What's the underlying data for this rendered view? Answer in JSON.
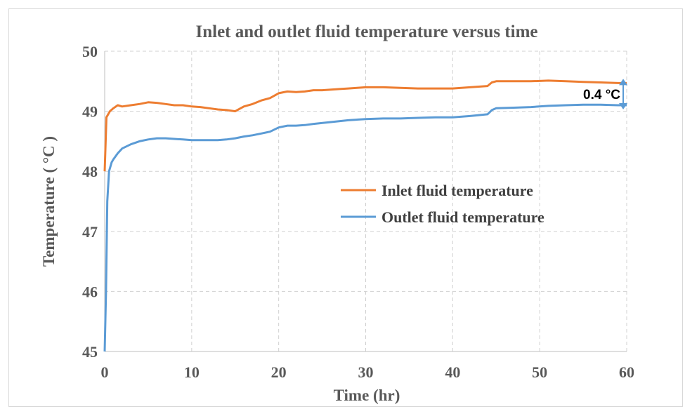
{
  "chart_data": {
    "type": "line",
    "title": "Inlet and outlet fluid temperature versus time",
    "xlabel": "Time (hr)",
    "ylabel": "Temperature ( °C )",
    "xlim": [
      0,
      60
    ],
    "ylim": [
      45,
      50
    ],
    "xticks": [
      "0",
      "10",
      "20",
      "30",
      "40",
      "50",
      "60"
    ],
    "yticks": [
      "45",
      "46",
      "47",
      "48",
      "49",
      "50"
    ],
    "grid": true,
    "legend_position": "center-right",
    "annotation": "0.4 °C",
    "series": [
      {
        "name": "Inlet fluid temperature",
        "color": "#ED7D31",
        "points": [
          [
            0,
            48.0
          ],
          [
            0.2,
            48.9
          ],
          [
            0.6,
            49.0
          ],
          [
            1,
            49.05
          ],
          [
            1.5,
            49.1
          ],
          [
            2,
            49.08
          ],
          [
            3,
            49.1
          ],
          [
            4,
            49.12
          ],
          [
            5,
            49.15
          ],
          [
            6,
            49.14
          ],
          [
            7,
            49.12
          ],
          [
            8,
            49.1
          ],
          [
            9,
            49.1
          ],
          [
            10,
            49.08
          ],
          [
            11,
            49.07
          ],
          [
            12,
            49.05
          ],
          [
            13,
            49.03
          ],
          [
            14,
            49.02
          ],
          [
            15,
            49.0
          ],
          [
            15.5,
            49.04
          ],
          [
            16,
            49.08
          ],
          [
            17,
            49.12
          ],
          [
            18,
            49.18
          ],
          [
            19,
            49.22
          ],
          [
            20,
            49.3
          ],
          [
            21,
            49.33
          ],
          [
            22,
            49.32
          ],
          [
            23,
            49.33
          ],
          [
            24,
            49.35
          ],
          [
            25,
            49.35
          ],
          [
            26,
            49.36
          ],
          [
            27,
            49.37
          ],
          [
            28,
            49.38
          ],
          [
            29,
            49.39
          ],
          [
            30,
            49.4
          ],
          [
            32,
            49.4
          ],
          [
            34,
            49.39
          ],
          [
            36,
            49.38
          ],
          [
            38,
            49.38
          ],
          [
            40,
            49.38
          ],
          [
            42,
            49.4
          ],
          [
            44,
            49.42
          ],
          [
            44.5,
            49.48
          ],
          [
            45,
            49.5
          ],
          [
            47,
            49.5
          ],
          [
            49,
            49.5
          ],
          [
            51,
            49.51
          ],
          [
            53,
            49.5
          ],
          [
            55,
            49.49
          ],
          [
            57,
            49.48
          ],
          [
            59,
            49.47
          ],
          [
            60,
            49.47
          ]
        ]
      },
      {
        "name": "Outlet fluid temperature",
        "color": "#5B9BD5",
        "points": [
          [
            0,
            45.0
          ],
          [
            0.15,
            46.0
          ],
          [
            0.3,
            47.5
          ],
          [
            0.5,
            48.0
          ],
          [
            0.8,
            48.15
          ],
          [
            1,
            48.2
          ],
          [
            1.5,
            48.3
          ],
          [
            2,
            48.38
          ],
          [
            3,
            48.45
          ],
          [
            4,
            48.5
          ],
          [
            5,
            48.53
          ],
          [
            6,
            48.55
          ],
          [
            7,
            48.55
          ],
          [
            8,
            48.54
          ],
          [
            9,
            48.53
          ],
          [
            10,
            48.52
          ],
          [
            11,
            48.52
          ],
          [
            12,
            48.52
          ],
          [
            13,
            48.52
          ],
          [
            14,
            48.53
          ],
          [
            15,
            48.55
          ],
          [
            16,
            48.58
          ],
          [
            17,
            48.6
          ],
          [
            18,
            48.63
          ],
          [
            19,
            48.66
          ],
          [
            20,
            48.73
          ],
          [
            21,
            48.76
          ],
          [
            22,
            48.76
          ],
          [
            23,
            48.77
          ],
          [
            24,
            48.79
          ],
          [
            26,
            48.82
          ],
          [
            28,
            48.85
          ],
          [
            30,
            48.87
          ],
          [
            32,
            48.88
          ],
          [
            34,
            48.88
          ],
          [
            36,
            48.89
          ],
          [
            38,
            48.9
          ],
          [
            40,
            48.9
          ],
          [
            42,
            48.92
          ],
          [
            44,
            48.95
          ],
          [
            44.5,
            49.02
          ],
          [
            45,
            49.05
          ],
          [
            47,
            49.06
          ],
          [
            49,
            49.07
          ],
          [
            51,
            49.09
          ],
          [
            53,
            49.1
          ],
          [
            55,
            49.11
          ],
          [
            57,
            49.11
          ],
          [
            59,
            49.1
          ],
          [
            60,
            49.1
          ]
        ]
      }
    ]
  }
}
